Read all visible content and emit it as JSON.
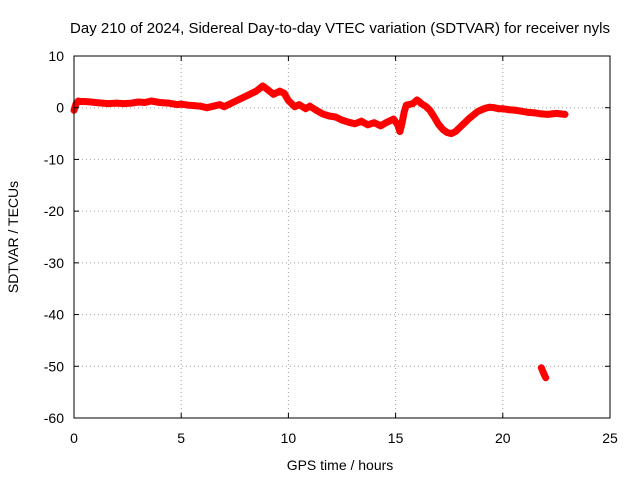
{
  "chart_data": {
    "type": "scatter",
    "title": "Day 210 of 2024, Sidereal Day-to-day VTEC variation (SDTVAR) for receiver nyls",
    "xlabel": "GPS time / hours",
    "ylabel": "SDTVAR / TECUs",
    "xlim": [
      0,
      25
    ],
    "ylim": [
      -60,
      10
    ],
    "xticks": [
      0,
      5,
      10,
      15,
      20,
      25
    ],
    "yticks": [
      -60,
      -50,
      -40,
      -30,
      -20,
      -10,
      0,
      10
    ],
    "xtick_labels": [
      "0",
      "5",
      "10",
      "15",
      "20",
      "25"
    ],
    "ytick_labels": [
      "-60",
      "-50",
      "-40",
      "-30",
      "-20",
      "-10",
      "0",
      "10"
    ],
    "grid": true,
    "legend": "none",
    "marker_color": "#ff0000",
    "series": [
      {
        "name": "SDTVAR",
        "x": [
          0.0,
          0.1,
          0.2,
          0.3,
          0.5,
          0.8,
          1.0,
          1.3,
          1.6,
          2.0,
          2.3,
          2.7,
          3.0,
          3.3,
          3.6,
          4.0,
          4.4,
          4.8,
          5.0,
          5.3,
          5.6,
          5.9,
          6.2,
          6.5,
          6.8,
          7.0,
          7.3,
          7.6,
          7.9,
          8.2,
          8.5,
          8.8,
          9.0,
          9.3,
          9.6,
          9.8,
          10.0,
          10.3,
          10.5,
          10.8,
          11.0,
          11.3,
          11.6,
          11.9,
          12.2,
          12.5,
          12.8,
          13.1,
          13.4,
          13.7,
          14.0,
          14.3,
          14.6,
          14.9,
          15.1,
          15.2,
          15.3,
          15.4,
          15.5,
          15.8,
          16.0,
          16.1,
          16.2,
          16.4,
          16.6,
          16.8,
          17.0,
          17.2,
          17.4,
          17.6,
          17.8,
          18.0,
          18.2,
          18.4,
          18.6,
          18.8,
          19.0,
          19.2,
          19.4,
          19.6,
          19.8,
          20.0,
          20.3,
          20.6,
          20.9,
          21.2,
          21.5,
          21.8,
          22.1,
          22.3,
          22.5,
          22.7,
          22.9,
          21.8,
          21.9,
          22.0
        ],
        "y": [
          -0.5,
          0.8,
          1.3,
          1.2,
          1.2,
          1.1,
          1.0,
          0.9,
          0.8,
          0.9,
          0.8,
          0.9,
          1.1,
          1.0,
          1.3,
          1.0,
          0.9,
          0.6,
          0.7,
          0.5,
          0.4,
          0.3,
          0.0,
          0.3,
          0.6,
          0.2,
          0.8,
          1.4,
          2.0,
          2.6,
          3.2,
          4.2,
          3.6,
          2.6,
          3.2,
          2.8,
          1.4,
          0.2,
          0.6,
          -0.2,
          0.3,
          -0.5,
          -1.2,
          -1.6,
          -1.8,
          -2.4,
          -2.8,
          -3.1,
          -2.6,
          -3.3,
          -2.9,
          -3.5,
          -2.8,
          -2.2,
          -3.3,
          -4.6,
          -3.0,
          -0.8,
          0.5,
          0.8,
          1.5,
          1.2,
          0.8,
          0.3,
          -0.5,
          -1.8,
          -3.2,
          -4.2,
          -4.8,
          -5.0,
          -4.6,
          -3.8,
          -3.0,
          -2.2,
          -1.5,
          -0.8,
          -0.4,
          -0.1,
          0.1,
          0.0,
          -0.2,
          -0.2,
          -0.4,
          -0.5,
          -0.7,
          -0.9,
          -1.0,
          -1.2,
          -1.3,
          -1.2,
          -1.1,
          -1.2,
          -1.3,
          -50.3,
          -51.3,
          -52.2
        ]
      }
    ]
  }
}
